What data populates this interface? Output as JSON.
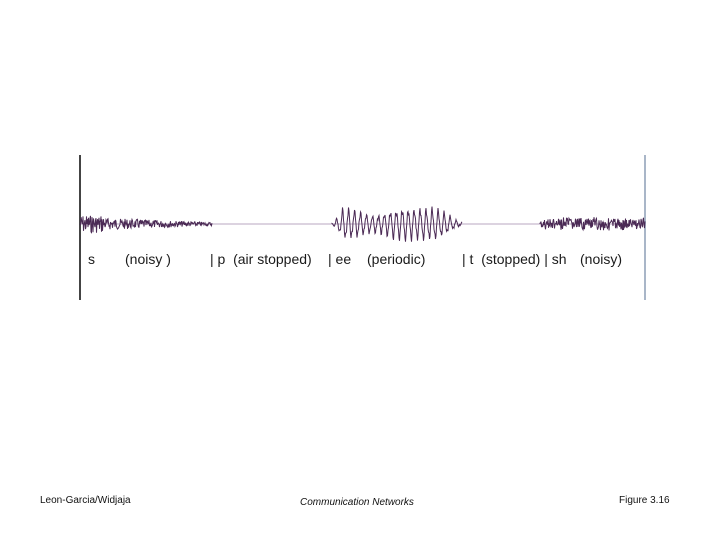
{
  "colors": {
    "waveform": "#4b2a55",
    "baseline": "#b9a7c1",
    "frame_left": "#444444",
    "frame_right": "#a9b6c8",
    "text": "#1a1a1a"
  },
  "segment_labels": {
    "s": "s",
    "noisy1": "(noisy )",
    "p": "| p  (air stopped)",
    "ee": "| ee",
    "periodic": "(periodic)",
    "t_sh": "| t  (stopped) | sh",
    "noisy2": "(noisy)"
  },
  "footer": {
    "left": "Leon-Garcia/Widjaja",
    "center": "Communication Networks",
    "right": "Figure 3.16"
  }
}
